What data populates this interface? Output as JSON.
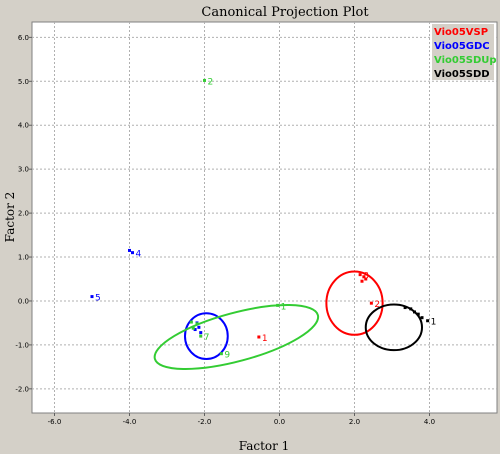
{
  "chart_data": {
    "type": "scatter",
    "title": "Canonical Projection Plot",
    "xlabel": "Factor 1",
    "ylabel": "Factor 2",
    "xlim": [
      -6.6,
      5.8
    ],
    "ylim": [
      -2.55,
      6.35
    ],
    "x_ticks": [
      -6.0,
      -4.0,
      -2.0,
      0.0,
      2.0,
      4.0
    ],
    "y_ticks": [
      -2.0,
      -1.0,
      0.0,
      1.0,
      2.0,
      3.0,
      4.0,
      5.0,
      6.0
    ],
    "grid": true,
    "legend_position": "top-right",
    "series": [
      {
        "name": "Vio05VSP",
        "color": "#ff0000",
        "points": [
          {
            "x": 2.15,
            "y": 0.6,
            "label": "8"
          },
          {
            "x": 2.25,
            "y": 0.55,
            "label": ""
          },
          {
            "x": 2.3,
            "y": 0.5,
            "label": ""
          },
          {
            "x": 2.2,
            "y": 0.45,
            "label": ""
          },
          {
            "x": 2.45,
            "y": -0.05,
            "label": "2"
          },
          {
            "x": -0.55,
            "y": -0.82,
            "label": "1"
          }
        ],
        "ellipse": {
          "cx": 2.0,
          "cy": -0.05,
          "rx": 0.75,
          "ry": 0.72,
          "angle": 0
        }
      },
      {
        "name": "Vio05GDC",
        "color": "#0000ff",
        "points": [
          {
            "x": -4.0,
            "y": 1.15,
            "label": ""
          },
          {
            "x": -3.92,
            "y": 1.1,
            "label": "4"
          },
          {
            "x": -5.0,
            "y": 0.1,
            "label": "5"
          },
          {
            "x": -2.2,
            "y": -0.5,
            "label": ""
          },
          {
            "x": -2.15,
            "y": -0.6,
            "label": ""
          },
          {
            "x": -2.25,
            "y": -0.65,
            "label": ""
          },
          {
            "x": -2.1,
            "y": -0.72,
            "label": ""
          }
        ],
        "ellipse": {
          "cx": -1.95,
          "cy": -0.8,
          "rx": 0.57,
          "ry": 0.52,
          "angle": 0
        }
      },
      {
        "name": "Vio05SDUp",
        "color": "#33cc33",
        "points": [
          {
            "x": -2.0,
            "y": 5.02,
            "label": "2"
          },
          {
            "x": -0.05,
            "y": -0.1,
            "label": "1"
          },
          {
            "x": -1.55,
            "y": -1.2,
            "label": "9"
          },
          {
            "x": -2.35,
            "y": -0.48,
            "label": ""
          },
          {
            "x": -2.2,
            "y": -0.52,
            "label": ""
          },
          {
            "x": -2.3,
            "y": -0.62,
            "label": ""
          },
          {
            "x": -2.1,
            "y": -0.8,
            "label": "7"
          }
        ],
        "ellipse": {
          "cx": -1.15,
          "cy": -0.82,
          "rx": 2.25,
          "ry": 0.55,
          "angle": -15
        }
      },
      {
        "name": "Vio05SDD",
        "color": "#000000",
        "points": [
          {
            "x": 3.35,
            "y": -0.15,
            "label": ""
          },
          {
            "x": 3.5,
            "y": -0.18,
            "label": ""
          },
          {
            "x": 3.6,
            "y": -0.25,
            "label": ""
          },
          {
            "x": 3.7,
            "y": -0.3,
            "label": ""
          },
          {
            "x": 3.8,
            "y": -0.38,
            "label": ""
          },
          {
            "x": 3.95,
            "y": -0.45,
            "label": "1"
          }
        ],
        "ellipse": {
          "cx": 3.05,
          "cy": -0.6,
          "rx": 0.75,
          "ry": 0.52,
          "angle": 0
        }
      }
    ]
  }
}
